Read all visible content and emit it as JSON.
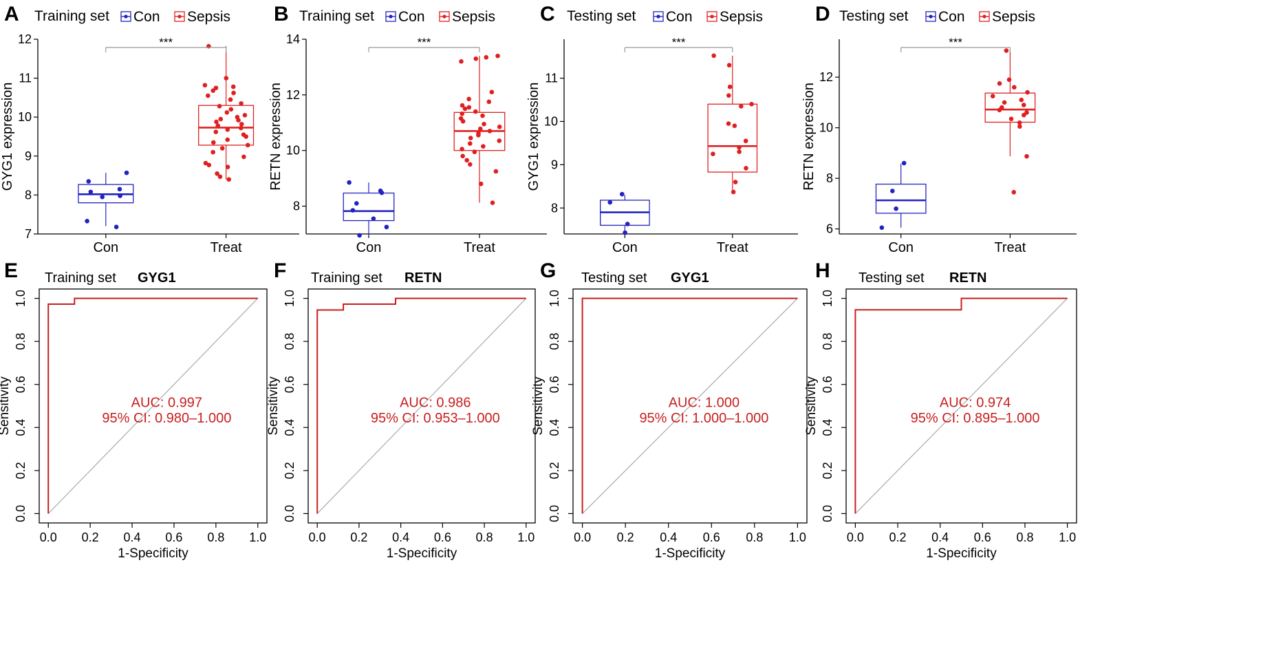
{
  "colors": {
    "con": "#2222c0",
    "sepsis": "#e02020",
    "roc_line": "#c81e1e",
    "diagonal": "#aaaaaa",
    "auc_text": "#c81e1e",
    "sig_line": "#999999"
  },
  "chart_data": [
    {
      "panel": "A",
      "type": "box",
      "title": "Training set",
      "legend": [
        "Con",
        "Sepsis"
      ],
      "legend_placement": "top",
      "categories": [
        "Con",
        "Treat"
      ],
      "ylabel": "GYG1 expression",
      "ylim": [
        7,
        12
      ],
      "yticks": [
        "7",
        "8",
        "9",
        "10",
        "11",
        "12"
      ],
      "significance": "***",
      "boxes": [
        {
          "group": "Con",
          "min": 7.2,
          "q1": 7.8,
          "median": 8.02,
          "q3": 8.27,
          "max": 8.57
        },
        {
          "group": "Treat",
          "min": 8.4,
          "q1": 9.28,
          "median": 9.73,
          "q3": 10.3,
          "max": 11.82
        }
      ],
      "points": [
        [
          7.18,
          7.33,
          7.95,
          7.98,
          8.08,
          8.15,
          8.35,
          8.57
        ],
        [
          8.4,
          8.47,
          8.55,
          8.72,
          8.77,
          8.82,
          8.98,
          9.1,
          9.2,
          9.28,
          9.35,
          9.42,
          9.5,
          9.55,
          9.62,
          9.68,
          9.72,
          9.78,
          9.82,
          9.88,
          9.92,
          9.95,
          10.0,
          10.05,
          10.12,
          10.2,
          10.28,
          10.35,
          10.45,
          10.55,
          10.62,
          10.68,
          10.75,
          10.78,
          10.82,
          11.0,
          11.82
        ]
      ]
    },
    {
      "panel": "B",
      "type": "box",
      "title": "Training set",
      "legend": [
        "Con",
        "Sepsis"
      ],
      "legend_placement": "top",
      "categories": [
        "Con",
        "Treat"
      ],
      "ylabel": "RETN expression",
      "ylim": [
        7,
        14
      ],
      "yticks": [
        "8",
        "10",
        "12",
        "14"
      ],
      "significance": "***",
      "boxes": [
        {
          "group": "Con",
          "min": 6.95,
          "q1": 7.48,
          "median": 7.82,
          "q3": 8.47,
          "max": 8.85
        },
        {
          "group": "Treat",
          "min": 8.12,
          "q1": 10.0,
          "median": 10.7,
          "q3": 11.37,
          "max": 13.4
        }
      ],
      "points": [
        [
          6.95,
          7.25,
          7.55,
          7.85,
          8.1,
          8.48,
          8.55,
          8.85
        ],
        [
          8.12,
          8.8,
          9.25,
          9.5,
          9.65,
          9.8,
          9.95,
          10.05,
          10.15,
          10.25,
          10.35,
          10.45,
          10.55,
          10.62,
          10.7,
          10.78,
          10.85,
          10.95,
          11.05,
          11.15,
          11.25,
          11.32,
          11.4,
          11.5,
          11.55,
          11.62,
          11.75,
          11.85,
          12.1,
          13.2,
          13.3,
          13.35,
          13.4
        ]
      ]
    },
    {
      "panel": "C",
      "type": "box",
      "title": "Testing set",
      "legend": [
        "Con",
        "Sepsis"
      ],
      "legend_placement": "top",
      "categories": [
        "Con",
        "Treat"
      ],
      "ylabel": "GYG1 expression",
      "ylim": [
        7.4,
        11.9
      ],
      "yticks": [
        "8",
        "9",
        "10",
        "11"
      ],
      "significance": "***",
      "boxes": [
        {
          "group": "Con",
          "min": 7.43,
          "q1": 7.6,
          "median": 7.9,
          "q3": 8.18,
          "max": 8.3
        },
        {
          "group": "Treat",
          "min": 8.37,
          "q1": 8.83,
          "median": 9.43,
          "q3": 10.4,
          "max": 11.52
        }
      ],
      "points": [
        [
          7.43,
          7.63,
          8.13,
          8.32
        ],
        [
          8.37,
          8.6,
          8.92,
          9.25,
          9.3,
          9.4,
          9.55,
          9.9,
          9.95,
          10.35,
          10.4,
          10.6,
          10.8,
          11.3,
          11.52
        ]
      ]
    },
    {
      "panel": "D",
      "type": "box",
      "title": "Testing set",
      "legend": [
        "Con",
        "Sepsis"
      ],
      "legend_placement": "top",
      "categories": [
        "Con",
        "Treat"
      ],
      "ylabel": "RETN expression",
      "ylim": [
        5.8,
        13.5
      ],
      "yticks": [
        "6",
        "8",
        "10",
        "12"
      ],
      "significance": "***",
      "boxes": [
        {
          "group": "Con",
          "min": 6.05,
          "q1": 6.62,
          "median": 7.13,
          "q3": 7.77,
          "max": 8.58
        },
        {
          "group": "Treat",
          "min": 8.87,
          "q1": 10.22,
          "median": 10.72,
          "q3": 11.37,
          "max": 13.05
        }
      ],
      "points": [
        [
          6.05,
          6.8,
          7.5,
          8.6
        ],
        [
          7.45,
          8.87,
          10.05,
          10.2,
          10.35,
          10.5,
          10.6,
          10.7,
          10.8,
          10.9,
          11.0,
          11.1,
          11.25,
          11.4,
          11.6,
          11.75,
          11.9,
          13.05
        ]
      ]
    },
    {
      "panel": "E",
      "type": "line",
      "subtype": "roc",
      "title": "Training set",
      "gene": "GYG1",
      "xlabel": "1-Specificity",
      "ylabel": "Sensitivity",
      "xlim": [
        0,
        1
      ],
      "ylim": [
        0,
        1
      ],
      "xticks": [
        "0.0",
        "0.2",
        "0.4",
        "0.6",
        "0.8",
        "1.0"
      ],
      "yticks": [
        "0.0",
        "0.2",
        "0.4",
        "0.6",
        "0.8",
        "1.0"
      ],
      "auc_label": "AUC: 0.997",
      "ci_label": "95% CI: 0.980–1.000",
      "x": [
        0,
        0,
        0.125,
        0.125,
        1
      ],
      "y": [
        0,
        0.973,
        0.973,
        1,
        1
      ]
    },
    {
      "panel": "F",
      "type": "line",
      "subtype": "roc",
      "title": "Training set",
      "gene": "RETN",
      "xlabel": "1-Specificity",
      "ylabel": "Sensitivity",
      "xlim": [
        0,
        1
      ],
      "ylim": [
        0,
        1
      ],
      "xticks": [
        "0.0",
        "0.2",
        "0.4",
        "0.6",
        "0.8",
        "1.0"
      ],
      "yticks": [
        "0.0",
        "0.2",
        "0.4",
        "0.6",
        "0.8",
        "1.0"
      ],
      "auc_label": "AUC: 0.986",
      "ci_label": "95% CI: 0.953–1.000",
      "x": [
        0,
        0,
        0.125,
        0.125,
        0.375,
        0.375,
        1
      ],
      "y": [
        0,
        0.946,
        0.946,
        0.973,
        0.973,
        1,
        1
      ]
    },
    {
      "panel": "G",
      "type": "line",
      "subtype": "roc",
      "title": "Testing set",
      "gene": "GYG1",
      "xlabel": "1-Specificity",
      "ylabel": "Sensitivity",
      "xlim": [
        0,
        1
      ],
      "ylim": [
        0,
        1
      ],
      "xticks": [
        "0.0",
        "0.2",
        "0.4",
        "0.6",
        "0.8",
        "1.0"
      ],
      "yticks": [
        "0.0",
        "0.2",
        "0.4",
        "0.6",
        "0.8",
        "1.0"
      ],
      "auc_label": "AUC: 1.000",
      "ci_label": "95% CI: 1.000–1.000",
      "x": [
        0,
        0,
        1
      ],
      "y": [
        0,
        1,
        1
      ]
    },
    {
      "panel": "H",
      "type": "line",
      "subtype": "roc",
      "title": "Testing set",
      "gene": "RETN",
      "xlabel": "1-Specificity",
      "ylabel": "Sensitivity",
      "xlim": [
        0,
        1
      ],
      "ylim": [
        0,
        1
      ],
      "xticks": [
        "0.0",
        "0.2",
        "0.4",
        "0.6",
        "0.8",
        "1.0"
      ],
      "yticks": [
        "0.0",
        "0.2",
        "0.4",
        "0.6",
        "0.8",
        "1.0"
      ],
      "auc_label": "AUC: 0.974",
      "ci_label": "95% CI: 0.895–1.000",
      "x": [
        0,
        0,
        0.5,
        0.5,
        1
      ],
      "y": [
        0,
        0.947,
        0.947,
        1,
        1
      ]
    }
  ]
}
